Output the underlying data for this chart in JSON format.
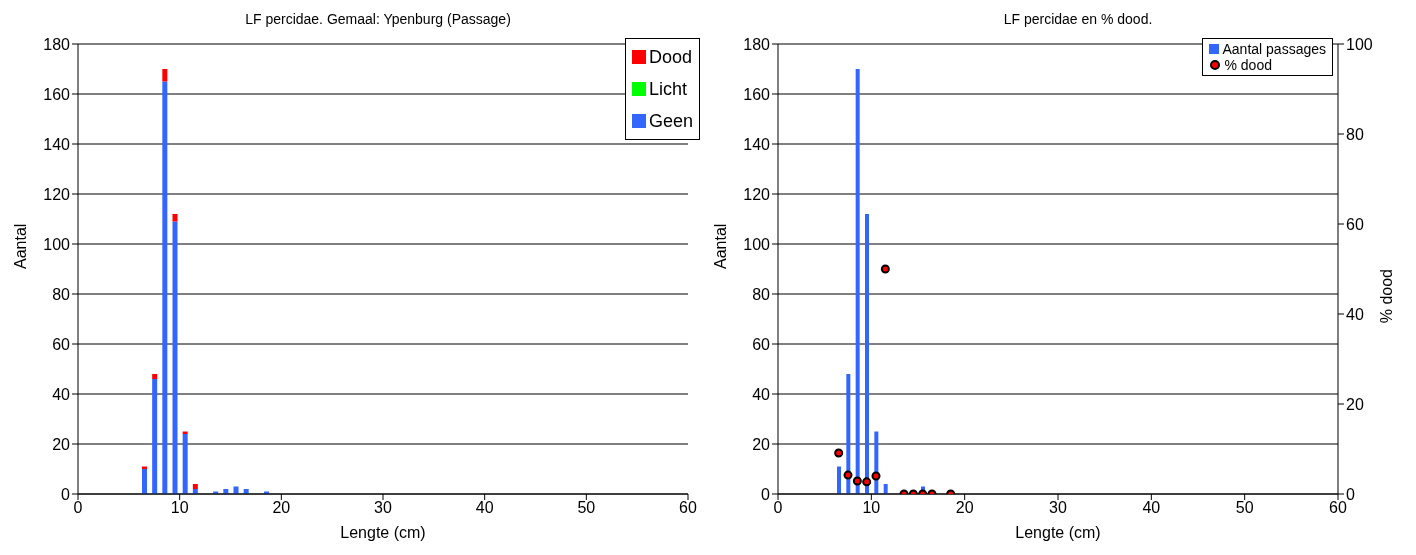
{
  "chart_data": [
    {
      "type": "bar",
      "title": "LF  percidae. Gemaal:  Ypenburg (Passage)",
      "xlabel": "Lengte (cm)",
      "ylabel": "Aantal",
      "stacked": true,
      "x": [
        6.5,
        7.5,
        8.5,
        9.5,
        10.5,
        11.5,
        13.5,
        14.5,
        15.5,
        16.5,
        18.5
      ],
      "series": [
        {
          "name": "Geen",
          "color": "#3366ff",
          "values": [
            10,
            46,
            165,
            109,
            24,
            2,
            1,
            2,
            3,
            2,
            1
          ]
        },
        {
          "name": "Licht",
          "color": "#00ff00",
          "values": [
            0,
            0,
            0,
            0,
            0,
            0,
            0,
            0,
            0,
            0,
            0
          ]
        },
        {
          "name": "Dood",
          "color": "#ff0000",
          "values": [
            1,
            2,
            5,
            3,
            1,
            2,
            0,
            0,
            0,
            0,
            0
          ]
        }
      ],
      "xlim": [
        0,
        60
      ],
      "xticks": [
        0,
        10,
        20,
        30,
        40,
        50,
        60
      ],
      "ylim": [
        0,
        180
      ],
      "yticks": [
        0,
        20,
        40,
        60,
        80,
        100,
        120,
        140,
        160,
        180
      ],
      "grid": "y",
      "legend": "top right"
    },
    {
      "type": "bar",
      "title": "LF percidae en % dood.",
      "xlabel": "Lengte (cm)",
      "ylabel": "Aantal",
      "y2label": "% dood",
      "x": [
        6.5,
        7.5,
        8.5,
        9.5,
        10.5,
        11.5,
        13.5,
        14.5,
        15.5,
        16.5,
        18.5
      ],
      "series": [
        {
          "name": "Aantal passages",
          "color": "#3366ff",
          "values": [
            11,
            48,
            170,
            112,
            25,
            4,
            null,
            null,
            3,
            null,
            null
          ]
        },
        {
          "name": "% dood",
          "type": "scatter",
          "axis": "y2",
          "color": "#ff0000",
          "marker": "circle",
          "values": [
            9.1,
            4.2,
            2.9,
            2.7,
            4,
            50,
            0,
            0,
            0,
            0,
            0
          ]
        }
      ],
      "xlim": [
        0,
        60
      ],
      "xticks": [
        0,
        10,
        20,
        30,
        40,
        50,
        60
      ],
      "ylim": [
        0,
        180
      ],
      "yticks": [
        0,
        20,
        40,
        60,
        80,
        100,
        120,
        140,
        160,
        180
      ],
      "y2lim": [
        0,
        100
      ],
      "y2ticks": [
        0,
        20,
        40,
        60,
        80,
        100
      ],
      "grid": "y",
      "legend": "top right"
    }
  ]
}
